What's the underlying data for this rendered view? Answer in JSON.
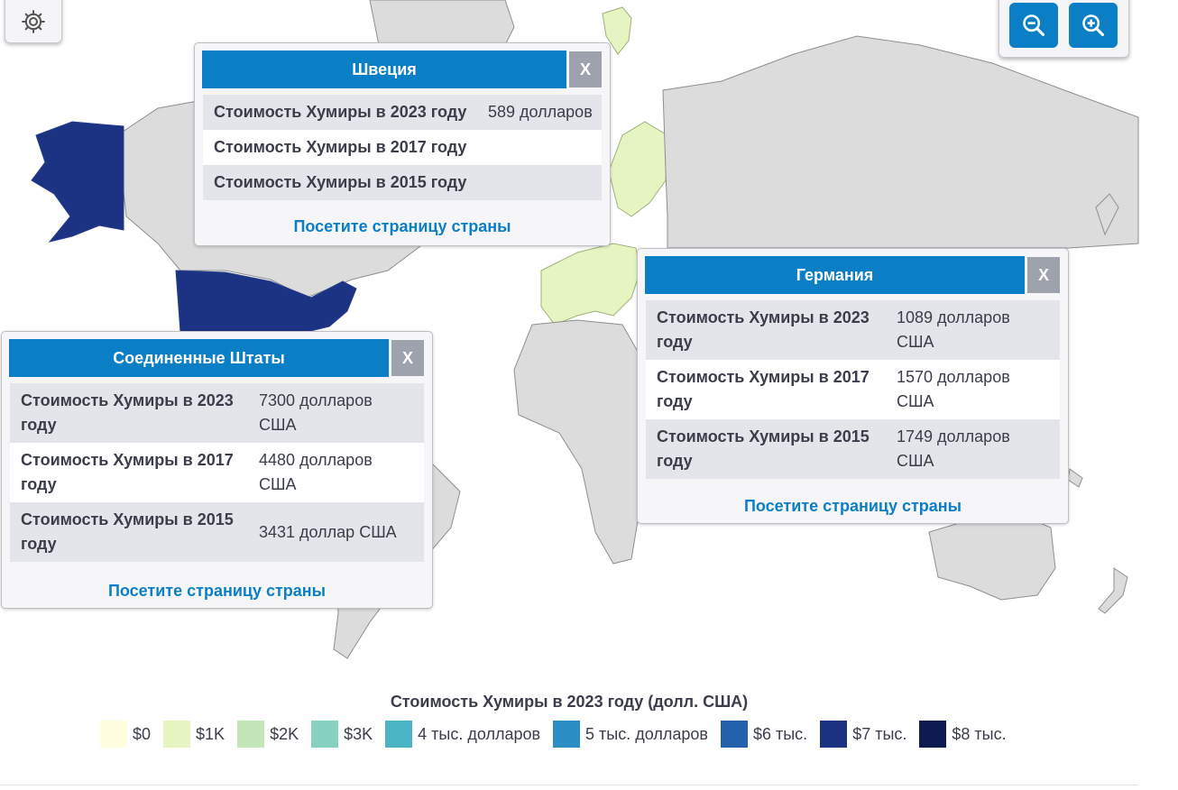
{
  "map": {
    "colors": {
      "land": "#dcdcdc",
      "highlight_dark": "#1c3282",
      "highlight_light": "#e6f4c2",
      "accent": "#0b7fc6"
    }
  },
  "controls": {
    "settings_icon": "gear-icon",
    "zoom_out_icon": "zoom-out-icon",
    "zoom_in_icon": "zoom-in-icon"
  },
  "popups": {
    "sweden": {
      "title": "Швеция",
      "close": "X",
      "rows": [
        {
          "label": "Стоимость Хумиры в 2023 году",
          "value": "589 долларов"
        },
        {
          "label": "Стоимость Хумиры в 2017 году",
          "value": ""
        },
        {
          "label": "Стоимость Хумиры в 2015 году",
          "value": ""
        }
      ],
      "link": "Посетите страницу страны"
    },
    "germany": {
      "title": "Германия",
      "close": "X",
      "rows": [
        {
          "label": "Стоимость Хумиры в 2023 году",
          "value": "1089 долларов США"
        },
        {
          "label": "Стоимость Хумиры в 2017 году",
          "value": "1570 долларов США"
        },
        {
          "label": "Стоимость Хумиры в 2015 году",
          "value": "1749 долларов США"
        }
      ],
      "link": "Посетите страницу страны"
    },
    "usa": {
      "title": "Соединенные Штаты",
      "close": "X",
      "rows": [
        {
          "label": "Стоимость Хумиры в 2023 году",
          "value": "7300 долларов США"
        },
        {
          "label": "Стоимость Хумиры в 2017 году",
          "value": "4480 долларов США"
        },
        {
          "label": "Стоимость Хумиры в 2015 году",
          "value": "3431 доллар США"
        }
      ],
      "link": "Посетите страницу страны"
    }
  },
  "legend": {
    "title": "Стоимость Хумиры в 2023 году (долл. США)",
    "items": [
      {
        "label": "$0",
        "color": "#ffffe0"
      },
      {
        "label": "$1K",
        "color": "#e6f4c2"
      },
      {
        "label": "$2K",
        "color": "#c2e6b8"
      },
      {
        "label": "$3K",
        "color": "#86d1bf"
      },
      {
        "label": "4 тыс. долларов",
        "color": "#4bb5c5"
      },
      {
        "label": "5 тыс. долларов",
        "color": "#2c8fc4"
      },
      {
        "label": "$6 тыс.",
        "color": "#2461ad"
      },
      {
        "label": "$7 тыс.",
        "color": "#1c3282"
      },
      {
        "label": "$8 тыс.",
        "color": "#0d1b52"
      }
    ]
  }
}
